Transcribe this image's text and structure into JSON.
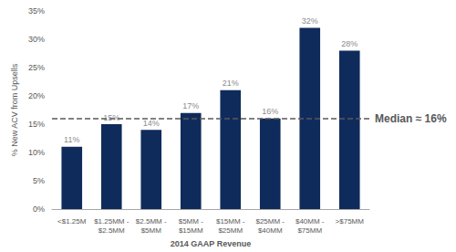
{
  "chart_data": {
    "type": "bar",
    "x_label": "2014 GAAP Revenue",
    "y_label": "% New ACV from Upsells",
    "categories": [
      "<$1.25M",
      "$1.25MM - $2.5MM",
      "$2.5MM - $5MM",
      "$5MM - $15MM",
      "$15MM - $25MM",
      "$25MM - $40MM",
      "$40MM - $75MM",
      ">$75MM"
    ],
    "values": [
      11,
      15,
      14,
      17,
      21,
      16,
      32,
      28
    ],
    "value_labels": [
      "11%",
      "15%",
      "14%",
      "17%",
      "21%",
      "16%",
      "32%",
      "28%"
    ],
    "color": "#0f2b5b",
    "data_labels": true,
    "grid": false,
    "ylim": [
      0,
      35
    ],
    "yticks": [
      {
        "value": 0,
        "label": "0%"
      },
      {
        "value": 5,
        "label": "5%"
      },
      {
        "value": 10,
        "label": "10%"
      },
      {
        "value": 15,
        "label": "15%"
      },
      {
        "value": 20,
        "label": "20%"
      },
      {
        "value": 25,
        "label": "25%"
      },
      {
        "value": 30,
        "label": "30%"
      },
      {
        "value": 35,
        "label": "35%"
      }
    ],
    "median": {
      "value": 16,
      "label": "Median ≈ 16%"
    }
  }
}
